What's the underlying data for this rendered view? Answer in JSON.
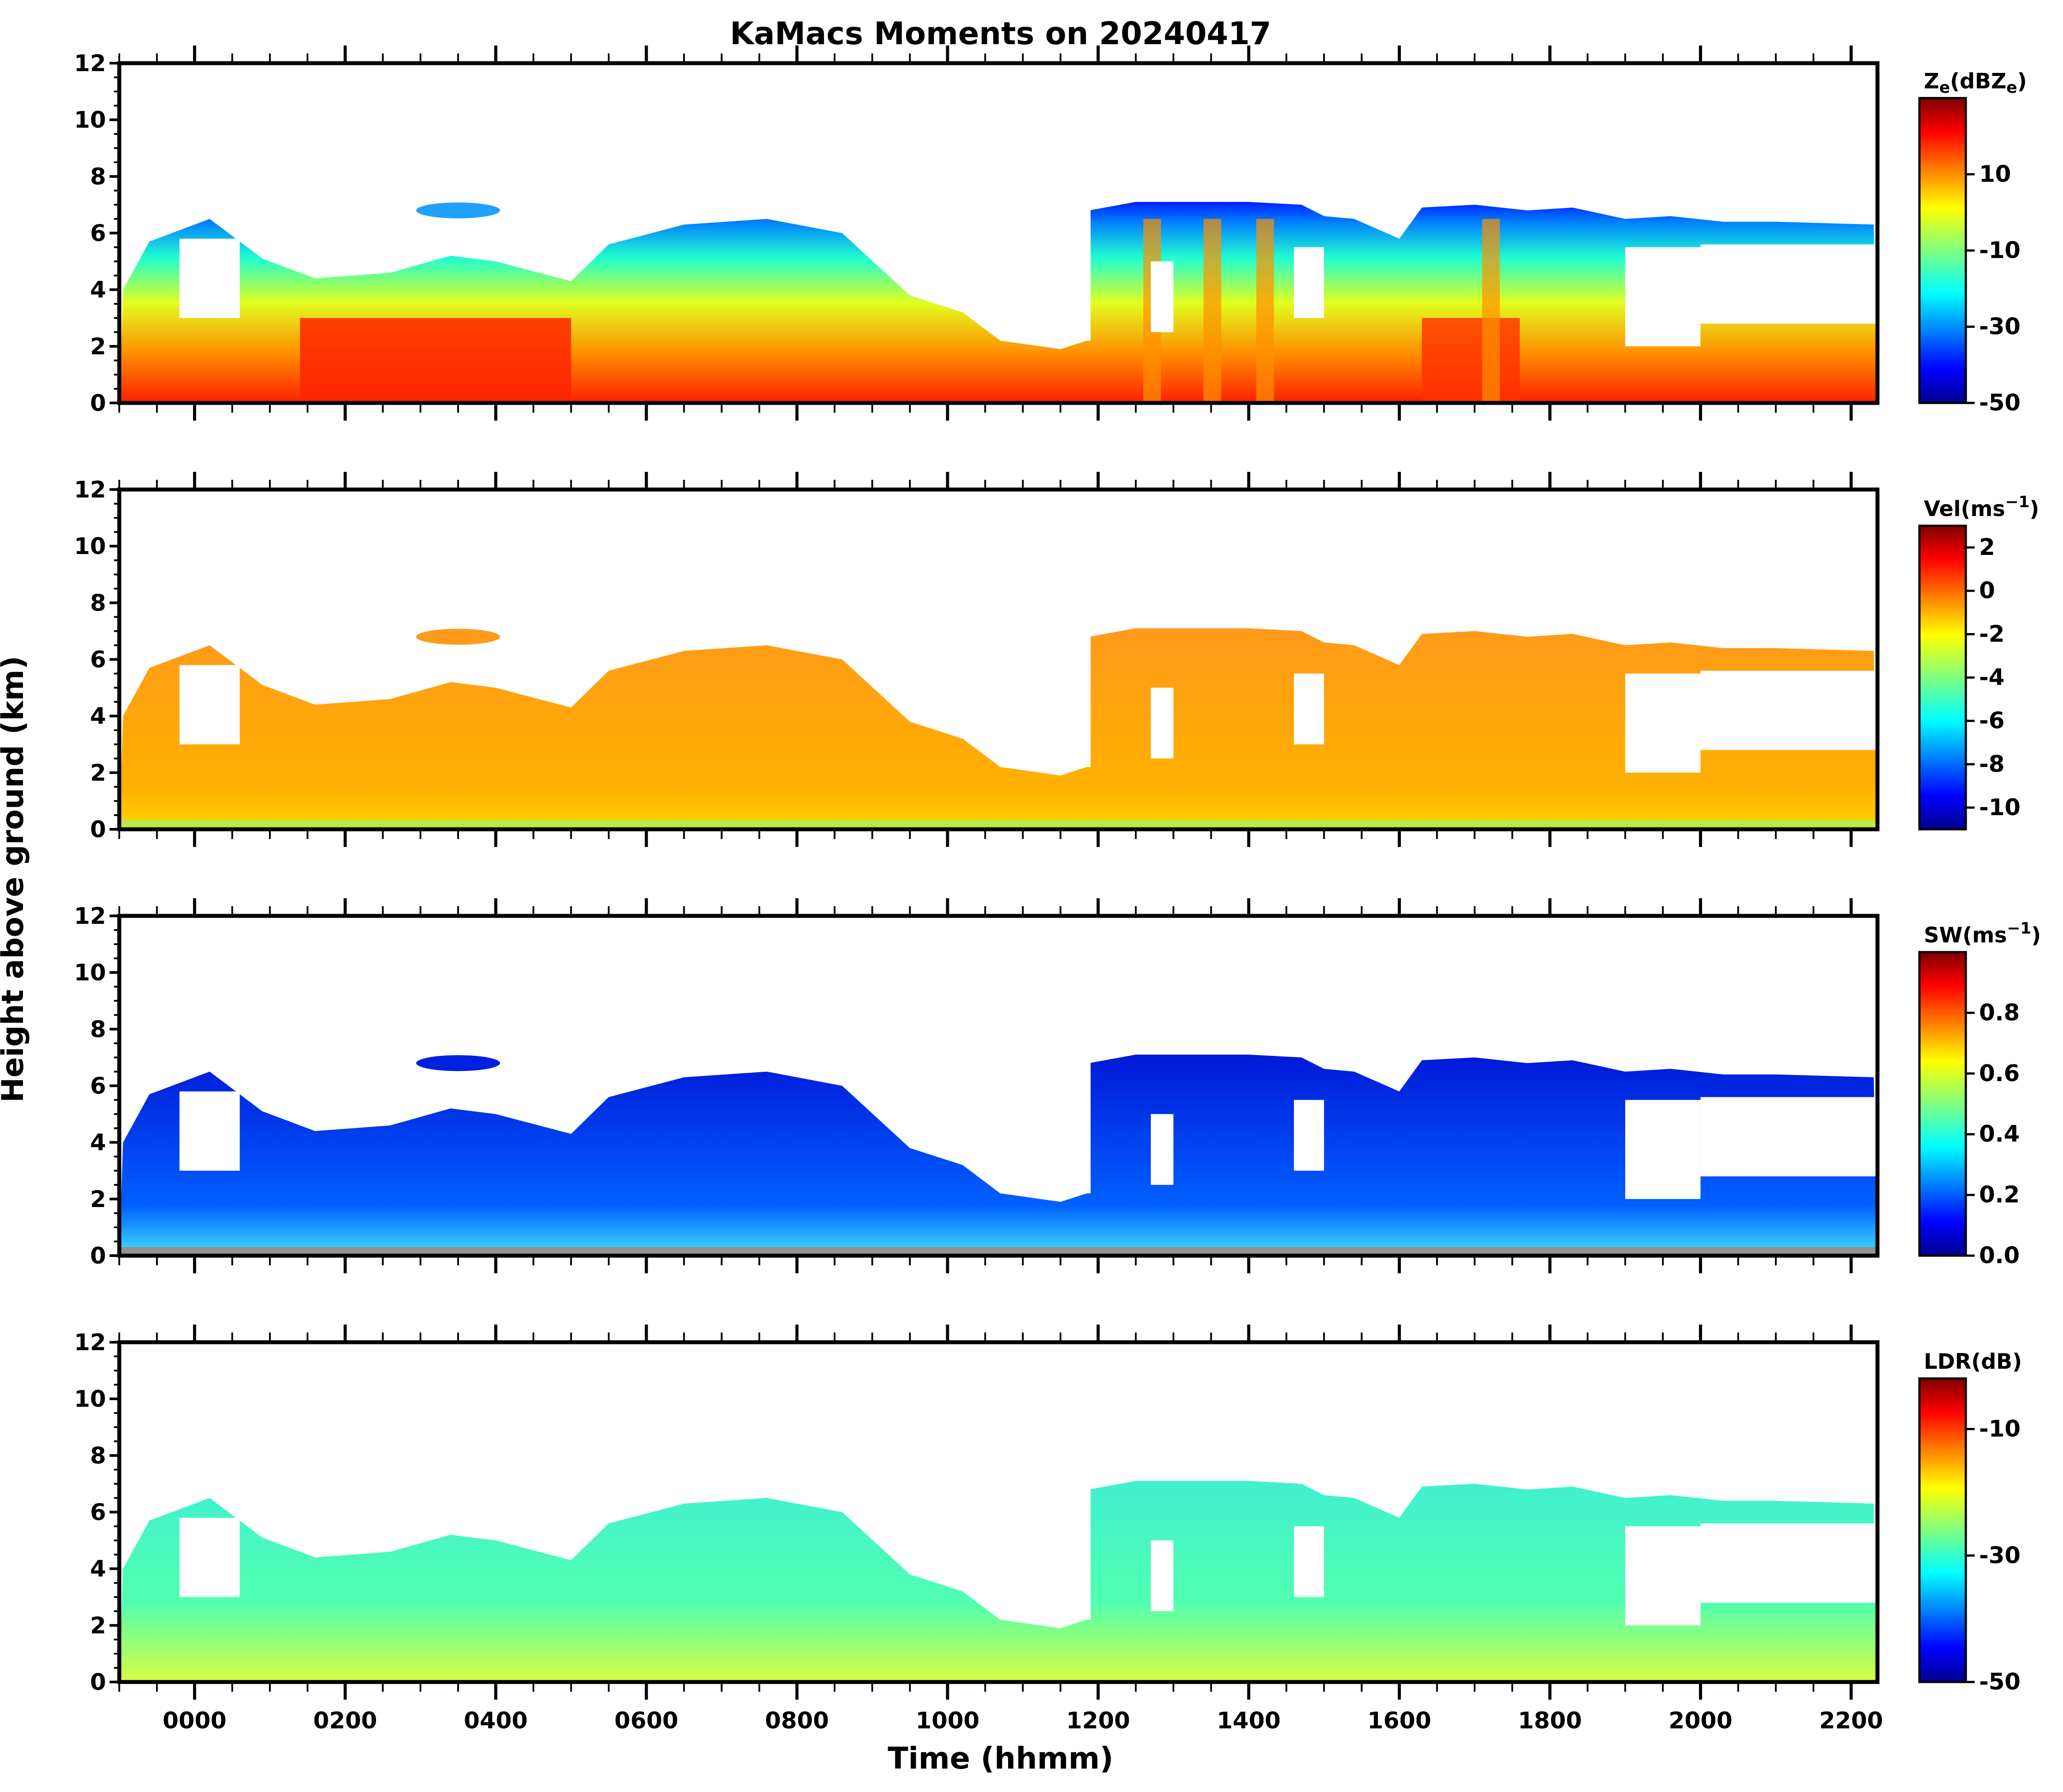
{
  "chart_data": {
    "type": "heatmap",
    "title": "KaMacs Moments on 20240417",
    "xlabel": "Time (hhmm)",
    "ylabel": "Height above ground (km)",
    "x_ticks": [
      "0000",
      "0200",
      "0400",
      "0600",
      "0800",
      "1000",
      "1200",
      "1400",
      "1600",
      "1800",
      "2000",
      "2200"
    ],
    "x_tick_hours": [
      0,
      2,
      4,
      6,
      8,
      10,
      12,
      14,
      16,
      18,
      20,
      22
    ],
    "xlim_hours": [
      -1,
      22.35
    ],
    "ylim_km": [
      0,
      12
    ],
    "y_ticks": [
      0,
      2,
      4,
      6,
      8,
      10,
      12
    ],
    "colormap": "jet",
    "jet_colors": [
      "#00008f",
      "#0000ff",
      "#0080ff",
      "#00ffff",
      "#80ff80",
      "#ffff00",
      "#ff8000",
      "#ff0000",
      "#800000"
    ],
    "cloud_top_km": [
      [
        -1,
        0
      ],
      [
        -0.95,
        4
      ],
      [
        -0.6,
        5.7
      ],
      [
        0.2,
        6.5
      ],
      [
        0.9,
        5.1
      ],
      [
        1.6,
        4.4
      ],
      [
        2.6,
        4.6
      ],
      [
        3.4,
        5.2
      ],
      [
        4,
        5
      ],
      [
        5,
        4.3
      ],
      [
        5.5,
        5.6
      ],
      [
        6.5,
        6.3
      ],
      [
        7.6,
        6.5
      ],
      [
        8.6,
        6
      ],
      [
        9.5,
        3.8
      ],
      [
        10.2,
        3.2
      ],
      [
        10.7,
        2.2
      ],
      [
        11.5,
        1.9
      ],
      [
        11.85,
        2.2
      ],
      [
        11.88,
        6.8
      ],
      [
        12.5,
        7.1
      ],
      [
        14,
        7.1
      ],
      [
        14.7,
        7
      ],
      [
        15,
        6.6
      ],
      [
        15.4,
        6.5
      ],
      [
        16,
        5.8
      ],
      [
        16.3,
        6.9
      ],
      [
        17,
        7
      ],
      [
        17.7,
        6.8
      ],
      [
        18.3,
        6.9
      ],
      [
        19,
        6.5
      ],
      [
        19.6,
        6.6
      ],
      [
        20.3,
        6.4
      ],
      [
        21,
        6.4
      ],
      [
        22.3,
        6.3
      ],
      [
        22.35,
        0
      ]
    ],
    "panels": [
      {
        "name": "reflectivity",
        "colorbar_label": "Z",
        "colorbar_sub": "e",
        "colorbar_label_tail": "(dBZ",
        "colorbar_sub_tail": "e",
        "colorbar_label_end": ")",
        "clim": [
          -50,
          30
        ],
        "colorbar_ticks": [
          "10",
          "-10",
          "-30",
          "-50"
        ],
        "colorbar_tick_values": [
          10,
          -10,
          -30,
          -50
        ]
      },
      {
        "name": "velocity",
        "colorbar_label": "Vel(ms",
        "colorbar_sup": "−1",
        "colorbar_label_end": ")",
        "clim": [
          -11,
          3
        ],
        "colorbar_ticks": [
          "2",
          "0",
          "-2",
          "-4",
          "-6",
          "-8",
          "-10"
        ],
        "colorbar_tick_values": [
          2,
          0,
          -2,
          -4,
          -6,
          -8,
          -10
        ]
      },
      {
        "name": "spectrum-width",
        "colorbar_label": "SW(ms",
        "colorbar_sup": "−1",
        "colorbar_label_end": ")",
        "clim": [
          0,
          1
        ],
        "colorbar_ticks": [
          "0.8",
          "0.6",
          "0.4",
          "0.2",
          "0.0"
        ],
        "colorbar_tick_values": [
          0.8,
          0.6,
          0.4,
          0.2,
          0.0
        ]
      },
      {
        "name": "ldr",
        "colorbar_label": "LDR(dB)",
        "clim": [
          -50,
          -2
        ],
        "colorbar_ticks": [
          "-10",
          "-30",
          "-50"
        ],
        "colorbar_tick_values": [
          -10,
          -30,
          -50
        ]
      }
    ]
  }
}
